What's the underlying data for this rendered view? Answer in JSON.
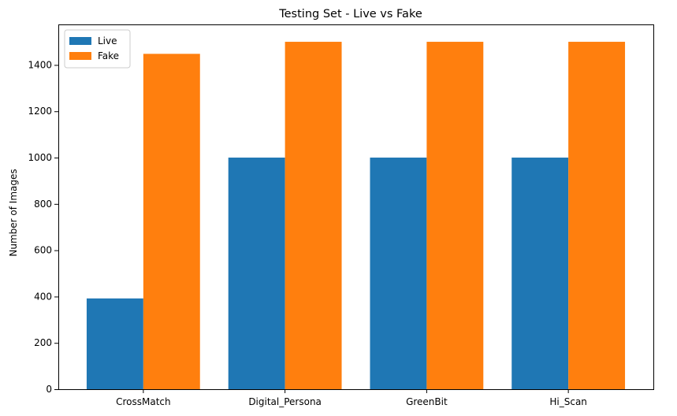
{
  "chart_data": {
    "type": "bar",
    "title": "Testing Set - Live vs Fake",
    "xlabel": "",
    "ylabel": "Number of Images",
    "categories": [
      "CrossMatch",
      "Digital_Persona",
      "GreenBit",
      "Hi_Scan"
    ],
    "series": [
      {
        "name": "Live",
        "color": "#1f77b4",
        "values": [
          392,
          1000,
          1000,
          1000
        ]
      },
      {
        "name": "Fake",
        "color": "#ff7f0e",
        "values": [
          1448,
          1500,
          1500,
          1500
        ]
      }
    ],
    "ylim": [
      0,
      1575
    ],
    "yticks": [
      0,
      200,
      400,
      600,
      800,
      1000,
      1200,
      1400
    ],
    "grid": false,
    "legend": "top-left"
  }
}
